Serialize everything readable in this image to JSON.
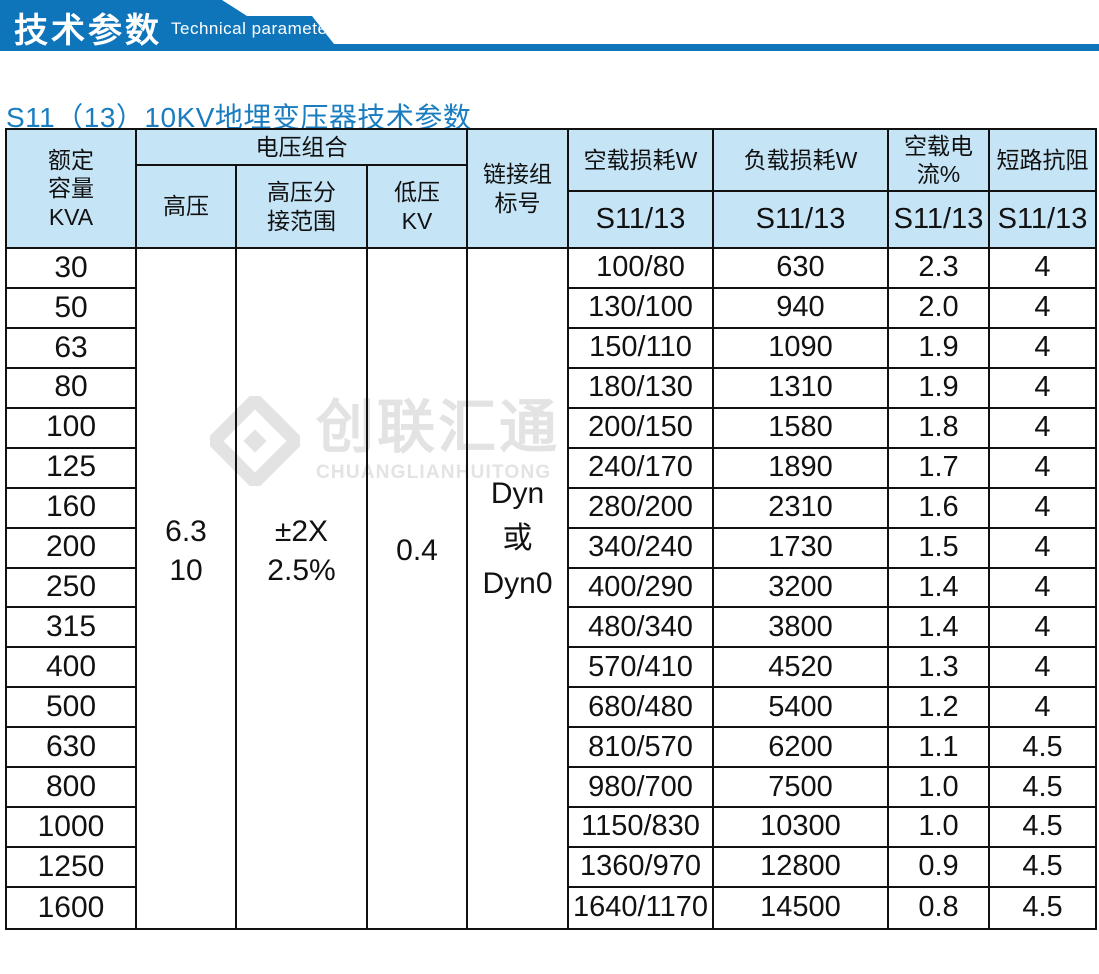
{
  "banner": {
    "title_cn": "技术参数",
    "title_en": "Technical parameter"
  },
  "page_title": "S11（13）10KV地埋变压器技术参数",
  "watermark": {
    "logo": "diamond-logo",
    "company_cn": "创联汇通",
    "company_en": "CHUANGLIANHUITONG"
  },
  "colors": {
    "banner_blue": "#0e75bb",
    "title_blue": "#1a7dc0",
    "header_bg": "#c5e4f6",
    "border": "#111111",
    "watermark_gray": "#e3e3e3"
  },
  "table": {
    "header": {
      "rated_capacity": "额定\n容量\nKVA",
      "voltage_combination": "电压组合",
      "high_voltage": "高压",
      "hv_tap_range": "高压分\n接范围",
      "low_voltage": "低压\nKV",
      "connection_group": "链接组\n标号",
      "no_load_loss": "空载损耗W",
      "load_loss": "负载损耗W",
      "no_load_current": "空载电流%",
      "short_circuit_impedance": "短路抗阻",
      "model_sub": "S11/13"
    },
    "merged": {
      "high_voltage": "6.3\n10",
      "hv_tap_range": "±2X\n2.5%",
      "low_voltage": "0.4",
      "connection_group": "Dyn\n或\nDyn0"
    },
    "rows": [
      {
        "capacity": "30",
        "no_load_loss": "100/80",
        "load_loss": "630",
        "no_load_current": "2.3",
        "impedance": "4"
      },
      {
        "capacity": "50",
        "no_load_loss": "130/100",
        "load_loss": "940",
        "no_load_current": "2.0",
        "impedance": "4"
      },
      {
        "capacity": "63",
        "no_load_loss": "150/110",
        "load_loss": "1090",
        "no_load_current": "1.9",
        "impedance": "4"
      },
      {
        "capacity": "80",
        "no_load_loss": "180/130",
        "load_loss": "1310",
        "no_load_current": "1.9",
        "impedance": "4"
      },
      {
        "capacity": "100",
        "no_load_loss": "200/150",
        "load_loss": "1580",
        "no_load_current": "1.8",
        "impedance": "4"
      },
      {
        "capacity": "125",
        "no_load_loss": "240/170",
        "load_loss": "1890",
        "no_load_current": "1.7",
        "impedance": "4"
      },
      {
        "capacity": "160",
        "no_load_loss": "280/200",
        "load_loss": "2310",
        "no_load_current": "1.6",
        "impedance": "4"
      },
      {
        "capacity": "200",
        "no_load_loss": "340/240",
        "load_loss": "1730",
        "no_load_current": "1.5",
        "impedance": "4"
      },
      {
        "capacity": "250",
        "no_load_loss": "400/290",
        "load_loss": "3200",
        "no_load_current": "1.4",
        "impedance": "4"
      },
      {
        "capacity": "315",
        "no_load_loss": "480/340",
        "load_loss": "3800",
        "no_load_current": "1.4",
        "impedance": "4"
      },
      {
        "capacity": "400",
        "no_load_loss": "570/410",
        "load_loss": "4520",
        "no_load_current": "1.3",
        "impedance": "4"
      },
      {
        "capacity": "500",
        "no_load_loss": "680/480",
        "load_loss": "5400",
        "no_load_current": "1.2",
        "impedance": "4"
      },
      {
        "capacity": "630",
        "no_load_loss": "810/570",
        "load_loss": "6200",
        "no_load_current": "1.1",
        "impedance": "4.5"
      },
      {
        "capacity": "800",
        "no_load_loss": "980/700",
        "load_loss": "7500",
        "no_load_current": "1.0",
        "impedance": "4.5"
      },
      {
        "capacity": "1000",
        "no_load_loss": "1150/830",
        "load_loss": "10300",
        "no_load_current": "1.0",
        "impedance": "4.5"
      },
      {
        "capacity": "1250",
        "no_load_loss": "1360/970",
        "load_loss": "12800",
        "no_load_current": "0.9",
        "impedance": "4.5"
      },
      {
        "capacity": "1600",
        "no_load_loss": "1640/1170",
        "load_loss": "14500",
        "no_load_current": "0.8",
        "impedance": "4.5"
      }
    ]
  }
}
